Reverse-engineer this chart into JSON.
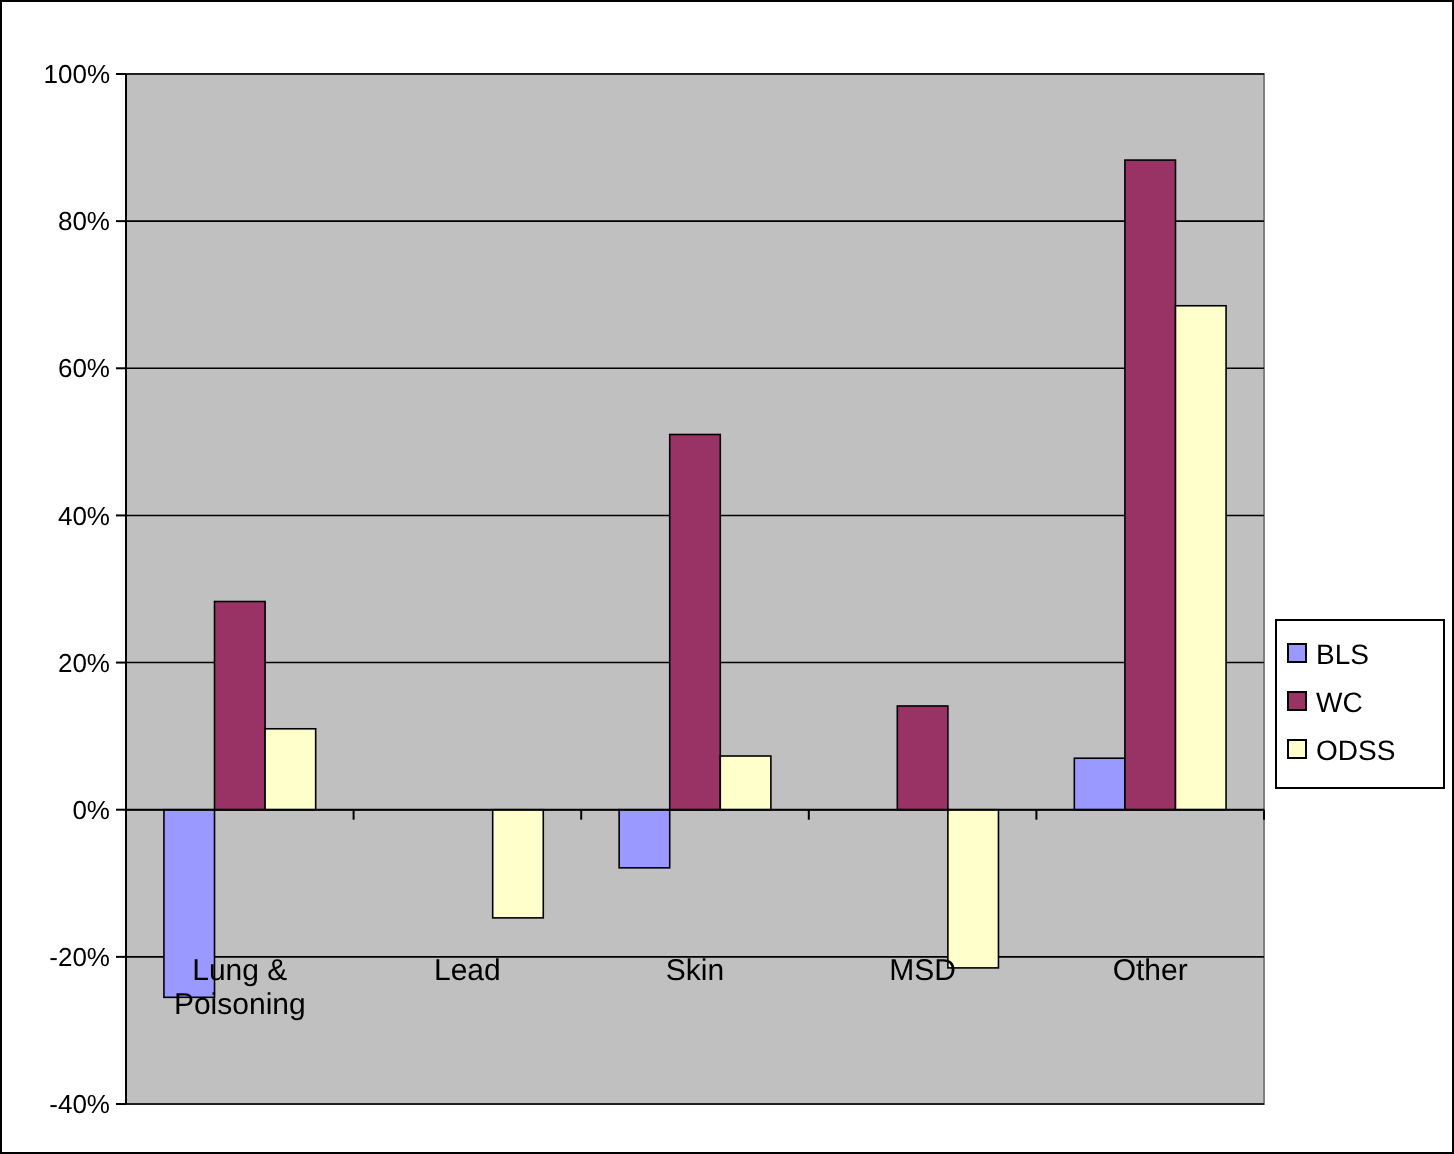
{
  "chart_data": {
    "type": "bar",
    "categories": [
      "Lung & Poisoning",
      "Lead",
      "Skin",
      "MSD",
      "Other"
    ],
    "series": [
      {
        "name": "BLS",
        "color": "#9999ff",
        "values": [
          -25.5,
          null,
          -7.9,
          null,
          7
        ]
      },
      {
        "name": "WC",
        "color": "#993366",
        "values": [
          28.3,
          null,
          51,
          14.1,
          88.3
        ]
      },
      {
        "name": "ODSS",
        "color": "#ffffcc",
        "values": [
          11,
          -14.7,
          7.3,
          -21.5,
          68.5
        ]
      }
    ],
    "ylim": [
      -40,
      100
    ],
    "yticks": [
      {
        "value": -40,
        "label": "-40%"
      },
      {
        "value": -20,
        "label": "-20%"
      },
      {
        "value": 0,
        "label": "0%"
      },
      {
        "value": 20,
        "label": "20%"
      },
      {
        "value": 40,
        "label": "40%"
      },
      {
        "value": 60,
        "label": "60%"
      },
      {
        "value": 80,
        "label": "80%"
      },
      {
        "value": 100,
        "label": "100%"
      }
    ],
    "grid": "y",
    "legend": "right"
  }
}
